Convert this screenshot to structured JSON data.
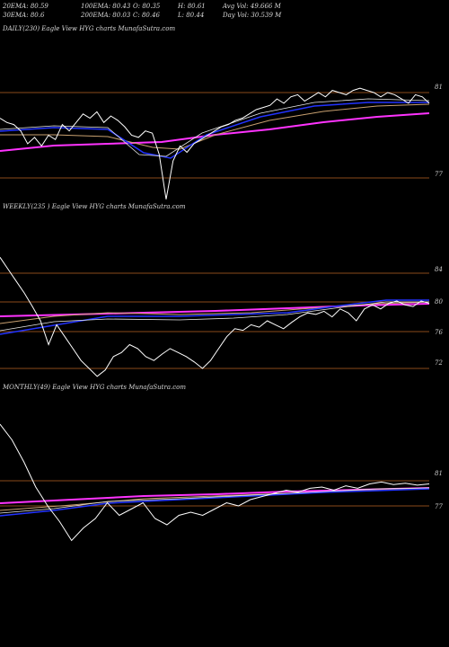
{
  "header": {
    "row1": {
      "ema20": "20EMA: 80.59",
      "ema100": "100EMA: 80.43",
      "open": "O: 80.35",
      "high": "H: 80.61",
      "avgvol": "Avg Vol: 49.666  M"
    },
    "row2": {
      "ema30": "30EMA: 80.6",
      "ema200": "200EMA: 80.03",
      "close": "C: 80.46",
      "low": "L: 80.44",
      "dayvol": "Day Vol: 30.539 M"
    }
  },
  "colors": {
    "background": "#000000",
    "price": "#ffffff",
    "ema_short": "#2233ff",
    "ema_long": "#ff33ff",
    "guide": "#8a4a1a"
  },
  "chart_data": [
    {
      "type": "line",
      "panel": "daily",
      "label": "DAILY(230) Eagle   View  HYG charts MunafaSutra.com",
      "ticks": [
        "81",
        "77"
      ],
      "series": [
        {
          "values": [
            79.8,
            79.6,
            79.5,
            79.2,
            78.6,
            78.9,
            78.5,
            79.0,
            78.8,
            79.5,
            79.2,
            79.6,
            80.0,
            79.8,
            80.1,
            79.6,
            79.9,
            79.7,
            79.4,
            79.0,
            78.9,
            79.2,
            79.1,
            78.1,
            76.0,
            77.8,
            78.5,
            78.2,
            78.6,
            78.8,
            79.0,
            79.2,
            79.4,
            79.5,
            79.7,
            79.8,
            80.0,
            80.2,
            80.3,
            80.4,
            80.7,
            80.5,
            80.8,
            80.9,
            80.6,
            80.8,
            81.0,
            80.8,
            81.1,
            81.0,
            80.9,
            81.1,
            81.2,
            81.1,
            81.0,
            80.8,
            81.0,
            80.9,
            80.7,
            80.5,
            80.9,
            80.8,
            80.5
          ]
        }
      ]
    },
    {
      "type": "line",
      "panel": "weekly",
      "label": "WEEKLY(235                    ) Eagle   View  HYG charts MunafaSutra.com",
      "ticks": [
        "84",
        "80",
        "76",
        "72"
      ],
      "series": [
        {
          "values": [
            86.0,
            84.5,
            83.0,
            81.5,
            79.8,
            78.0,
            75.0,
            77.5,
            76.0,
            74.5,
            73.0,
            72.0,
            71.0,
            71.8,
            73.5,
            74.0,
            75.0,
            74.5,
            73.5,
            73.0,
            73.8,
            74.5,
            74.0,
            73.5,
            72.8,
            72.0,
            73.0,
            74.5,
            76.0,
            77.0,
            76.8,
            77.5,
            77.2,
            78.0,
            77.5,
            77.0,
            77.8,
            78.5,
            79.0,
            78.8,
            79.2,
            78.5,
            79.5,
            79.0,
            78.0,
            79.5,
            80.0,
            79.5,
            80.2,
            80.5,
            80.0,
            79.8,
            80.5,
            80.2
          ]
        }
      ]
    },
    {
      "type": "line",
      "panel": "monthly",
      "label": "MONTHLY(49) Eagle   View  HYG charts MunafaSutra.com",
      "ticks": [
        "81",
        "77"
      ],
      "series": [
        {
          "values": [
            90.0,
            87.5,
            84.0,
            80.0,
            77.0,
            74.5,
            71.5,
            73.5,
            75.0,
            77.5,
            75.5,
            76.5,
            77.5,
            75.0,
            74.0,
            75.5,
            76.0,
            75.5,
            76.5,
            77.5,
            77.0,
            78.0,
            78.5,
            79.0,
            79.5,
            79.2,
            79.8,
            80.0,
            79.5,
            80.2,
            79.8,
            80.5,
            80.8,
            80.4,
            80.6,
            80.3,
            80.5
          ]
        }
      ]
    }
  ]
}
